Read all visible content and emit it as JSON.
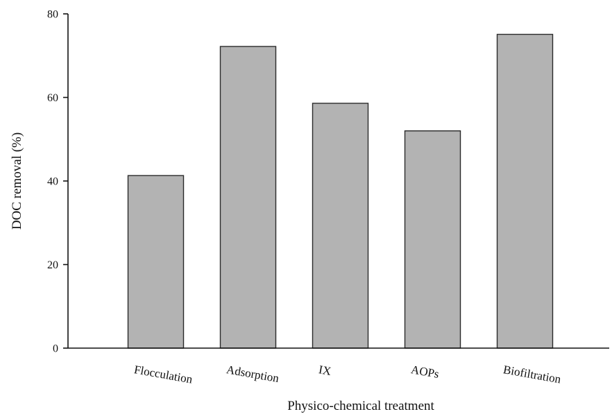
{
  "chart_data": {
    "type": "bar",
    "categories": [
      "Flocculation",
      "Adsorption",
      "IX",
      "AOPs",
      "Biofiltration"
    ],
    "values": [
      41.3,
      72.2,
      58.6,
      52.0,
      75.1
    ],
    "xlabel": "Physico-chemical treatment",
    "ylabel": "DOC removal (%)",
    "ylim": [
      0,
      80
    ],
    "yticks": [
      0,
      20,
      40,
      60,
      80
    ],
    "grid": false,
    "legend": "none",
    "bar_color": "#b3b3b3",
    "bar_edge_color": "#2a2a2a",
    "axis_color": "#111111"
  }
}
